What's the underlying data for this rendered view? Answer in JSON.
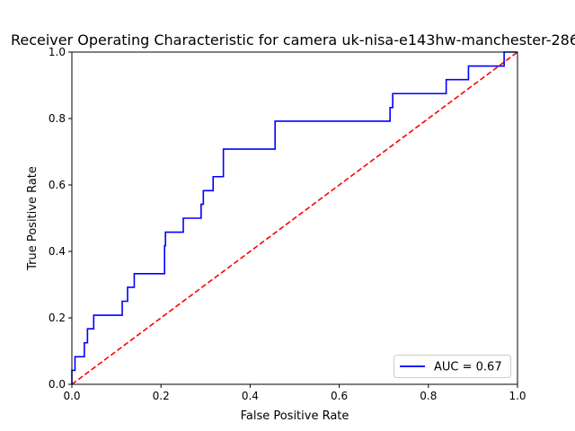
{
  "chart_data": {
    "type": "line",
    "title": "Receiver Operating Characteristic for camera uk-nisa-e143hw-manchester-286",
    "xlabel": "False Positive Rate",
    "ylabel": "True Positive Rate",
    "xlim": [
      0.0,
      1.0
    ],
    "ylim": [
      0.0,
      1.0
    ],
    "xticks": [
      "0.0",
      "0.2",
      "0.4",
      "0.6",
      "0.8",
      "1.0"
    ],
    "yticks": [
      "0.0",
      "0.2",
      "0.4",
      "0.6",
      "0.8",
      "1.0"
    ],
    "grid": false,
    "legend_position": "lower right",
    "series": [
      {
        "name": "AUC = 0.67",
        "color": "#0000ff",
        "style": "solid",
        "x": [
          0.0,
          0.0,
          0.007,
          0.007,
          0.028,
          0.028,
          0.035,
          0.035,
          0.049,
          0.049,
          0.056,
          0.056,
          0.113,
          0.113,
          0.125,
          0.125,
          0.14,
          0.14,
          0.208,
          0.208,
          0.21,
          0.21,
          0.25,
          0.25,
          0.29,
          0.29,
          0.295,
          0.295,
          0.317,
          0.317,
          0.34,
          0.34,
          0.456,
          0.456,
          0.714,
          0.714,
          0.72,
          0.72,
          0.84,
          0.84,
          0.89,
          0.89,
          0.97,
          0.97,
          1.0
        ],
        "y": [
          0.0,
          0.042,
          0.042,
          0.083,
          0.083,
          0.125,
          0.125,
          0.167,
          0.167,
          0.208,
          0.208,
          0.208,
          0.208,
          0.25,
          0.25,
          0.292,
          0.292,
          0.333,
          0.333,
          0.417,
          0.417,
          0.458,
          0.458,
          0.5,
          0.5,
          0.542,
          0.542,
          0.583,
          0.583,
          0.625,
          0.625,
          0.708,
          0.708,
          0.792,
          0.792,
          0.833,
          0.833,
          0.875,
          0.875,
          0.917,
          0.917,
          0.958,
          0.958,
          1.0,
          1.0
        ]
      },
      {
        "color": "#ff0000",
        "style": "dashed",
        "x": [
          0.0,
          1.0
        ],
        "y": [
          0.0,
          1.0
        ]
      }
    ]
  }
}
